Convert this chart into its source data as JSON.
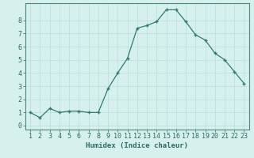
{
  "x": [
    1,
    2,
    3,
    4,
    5,
    6,
    7,
    8,
    9,
    10,
    11,
    12,
    13,
    14,
    15,
    16,
    17,
    18,
    19,
    20,
    21,
    22,
    23
  ],
  "y": [
    1.0,
    0.6,
    1.3,
    1.0,
    1.1,
    1.1,
    1.0,
    1.0,
    2.8,
    4.0,
    5.1,
    7.4,
    7.6,
    7.9,
    8.8,
    8.8,
    7.9,
    6.9,
    6.5,
    5.5,
    5.0,
    4.1,
    3.2
  ],
  "line_color": "#2e7d6e",
  "marker": "+",
  "markersize": 3.5,
  "linewidth": 0.9,
  "bg_color": "#d6f0ee",
  "grid_color": "#b8ddd9",
  "xlabel": "Humidex (Indice chaleur)",
  "xlabel_fontsize": 6.5,
  "tick_fontsize": 6,
  "xlim": [
    0.5,
    23.5
  ],
  "ylim": [
    -0.3,
    9.3
  ],
  "yticks": [
    0,
    1,
    2,
    3,
    4,
    5,
    6,
    7,
    8
  ],
  "xticks": [
    1,
    2,
    3,
    4,
    5,
    6,
    7,
    8,
    9,
    10,
    11,
    12,
    13,
    14,
    15,
    16,
    17,
    18,
    19,
    20,
    21,
    22,
    23
  ],
  "axis_color": "#2e6b5e",
  "spine_color": "#4a8a7a"
}
